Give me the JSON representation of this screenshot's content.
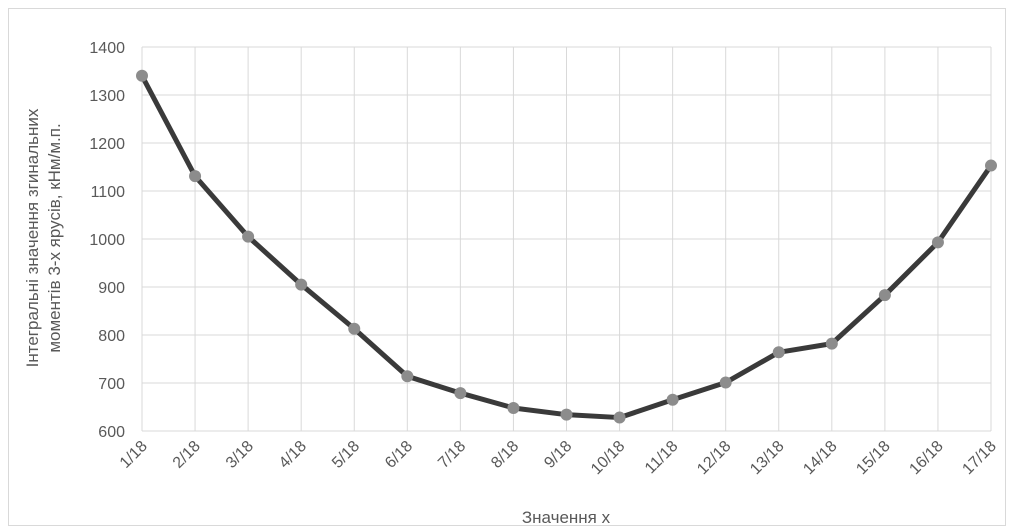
{
  "chart_data": {
    "type": "line",
    "title": "",
    "xlabel": "Значення x",
    "ylabel_lines": [
      "Інтегральні значення згинальних",
      "моментів 3-х ярусів, кНм/м.п."
    ],
    "ylim": [
      600,
      1400
    ],
    "y_ticks": [
      600,
      700,
      800,
      900,
      1000,
      1100,
      1200,
      1300,
      1400
    ],
    "grid": true,
    "legend": "none",
    "categories": [
      "1/18",
      "2/18",
      "3/18",
      "4/18",
      "5/18",
      "6/18",
      "7/18",
      "8/18",
      "9/18",
      "10/18",
      "11/18",
      "12/18",
      "13/18",
      "14/18",
      "15/18",
      "16/18",
      "17/18"
    ],
    "series": [
      {
        "values": [
          1340,
          1131,
          1005,
          905,
          813,
          714,
          679,
          648,
          634,
          628,
          665,
          701,
          764,
          782,
          883,
          993,
          1153
        ],
        "line_color": "#3a3a3a",
        "marker_color": "#8c8c8c"
      }
    ]
  }
}
